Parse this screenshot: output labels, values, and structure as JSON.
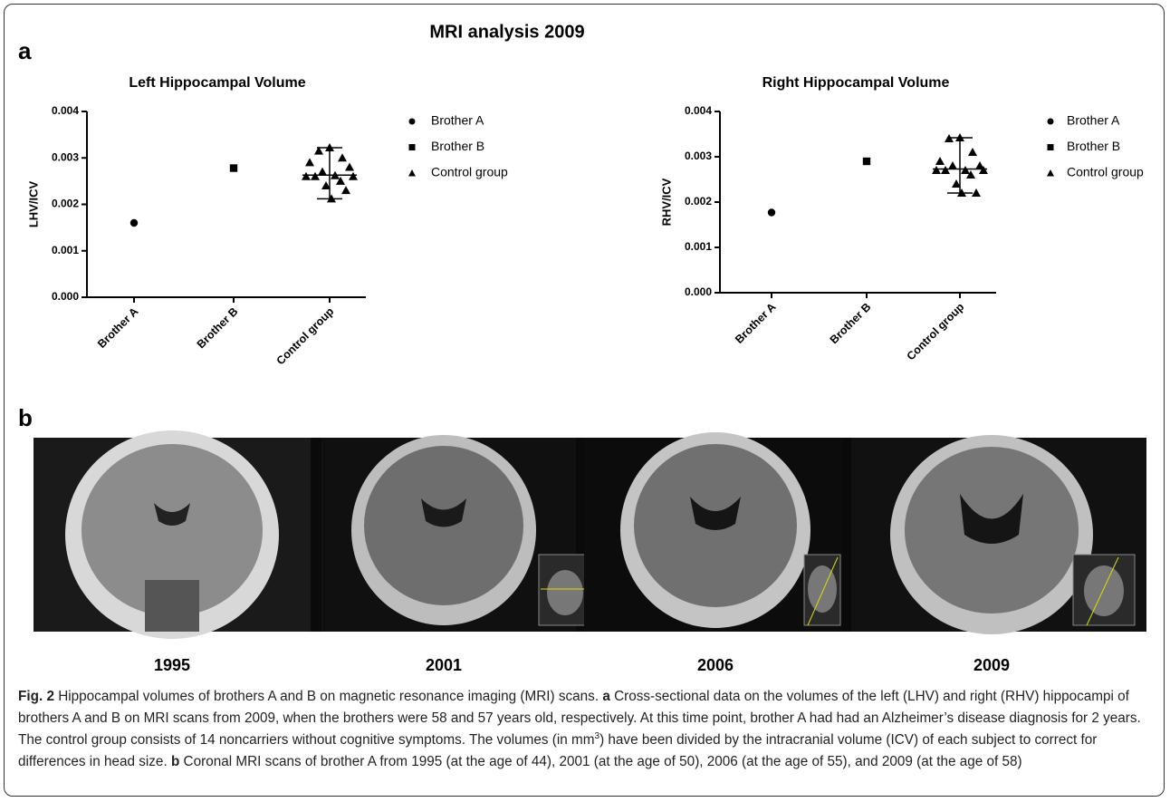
{
  "figure_title": "MRI analysis 2009",
  "panel_a_label": "a",
  "panel_b_label": "b",
  "chart_data": [
    {
      "type": "scatter",
      "title": "Left Hippocampal Volume",
      "y_label": "LHV/ICV",
      "categories": [
        "Brother A",
        "Brother B",
        "Control group"
      ],
      "ylim": [
        0,
        0.004
      ],
      "yticks": [
        {
          "value": 0,
          "label": "0.000"
        },
        {
          "value": 0.001,
          "label": "0.001"
        },
        {
          "value": 0.002,
          "label": "0.002"
        },
        {
          "value": 0.003,
          "label": "0.003"
        },
        {
          "value": 0.004,
          "label": "0.004"
        }
      ],
      "series": [
        {
          "name": "Brother A",
          "marker": "circle",
          "color": "#000000",
          "values": [
            0.0016
          ]
        },
        {
          "name": "Brother B",
          "marker": "square",
          "color": "#000000",
          "values": [
            0.00278
          ]
        },
        {
          "name": "Control group",
          "marker": "triangle",
          "color": "#000000",
          "values": [
            0.00322,
            0.00315,
            0.003,
            0.0029,
            0.0028,
            0.0027,
            0.00262,
            0.0026,
            0.0026,
            0.0026,
            0.0025,
            0.0024,
            0.0023,
            0.00212
          ],
          "summary": {
            "center": 0.00263,
            "low": 0.00212,
            "high": 0.00322
          }
        }
      ]
    },
    {
      "type": "scatter",
      "title": "Right Hippocampal Volume",
      "y_label": "RHV/ICV",
      "categories": [
        "Brother A",
        "Brother B",
        "Control group"
      ],
      "ylim": [
        0,
        0.004
      ],
      "yticks": [
        {
          "value": 0,
          "label": "0.000"
        },
        {
          "value": 0.001,
          "label": "0.001"
        },
        {
          "value": 0.002,
          "label": "0.002"
        },
        {
          "value": 0.003,
          "label": "0.003"
        },
        {
          "value": 0.004,
          "label": "0.004"
        }
      ],
      "series": [
        {
          "name": "Brother A",
          "marker": "circle",
          "color": "#000000",
          "values": [
            0.00177
          ]
        },
        {
          "name": "Brother B",
          "marker": "square",
          "color": "#000000",
          "values": [
            0.0029
          ]
        },
        {
          "name": "Control group",
          "marker": "triangle",
          "color": "#000000",
          "values": [
            0.00342,
            0.0034,
            0.0031,
            0.0029,
            0.0028,
            0.0028,
            0.0027,
            0.0027,
            0.0027,
            0.0027,
            0.0026,
            0.0024,
            0.0022,
            0.0022
          ],
          "summary": {
            "center": 0.00273,
            "low": 0.0022,
            "high": 0.00342
          }
        }
      ]
    }
  ],
  "scans": [
    "1995",
    "2001",
    "2006",
    "2009"
  ],
  "caption": [
    {
      "text": "Fig. 2",
      "style": "bold"
    },
    {
      "text": " Hippocampal volumes of brothers A and B on magnetic resonance imaging (MRI) scans. ",
      "style": "normal"
    },
    {
      "text": "a",
      "style": "bold"
    },
    {
      "text": " Cross-sectional data on the volumes of the left (LHV) and right (RHV) hippocampi of brothers A and B on MRI scans from 2009, when the brothers were 58 and 57 years old, respectively. At this time point, brother A had had an Alzheimer’s disease diagnosis for 2 years. The control group consists of 14 noncarriers without cognitive symptoms. The volumes (in mm",
      "style": "normal"
    },
    {
      "text": "3",
      "style": "sup"
    },
    {
      "text": ") have been divided by the intracranial volume (ICV) of each subject to correct for differences in head size. ",
      "style": "normal"
    },
    {
      "text": "b",
      "style": "bold"
    },
    {
      "text": " Coronal MRI scans of brother A from 1995 (at the age of 44), 2001 (at the age of 50), 2006 (at the age of 55), and 2009 (at the age of 58)",
      "style": "normal"
    }
  ]
}
